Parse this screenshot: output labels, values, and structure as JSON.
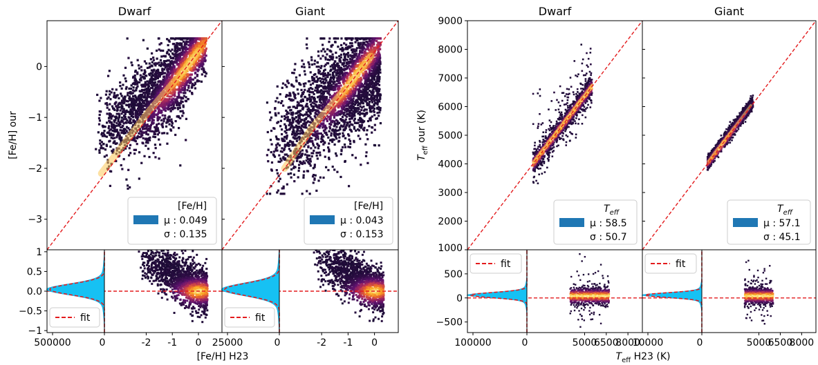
{
  "chart_data": [
    {
      "type": "scatter",
      "panel": "left",
      "titles": [
        "Dwarf",
        "Giant"
      ],
      "ylabel": "[Fe/H] our",
      "xlabel": "[Fe/H] H23",
      "xlim": [
        -3.6,
        0.9
      ],
      "ylim": [
        -3.6,
        0.9
      ],
      "yticks": [
        0,
        -1,
        -2,
        -3
      ],
      "ytick_labels": [
        "0",
        "−1",
        "−2",
        "−3"
      ],
      "xticks": [
        -2,
        -1,
        0
      ],
      "xtick_labels": [
        "-2",
        "-1",
        "0"
      ],
      "resid_ylim": [
        -1.05,
        1.05
      ],
      "resid_yticks": [
        1,
        0.5,
        0.0,
        -0.5,
        -1
      ],
      "resid_ytick_labels": [
        "1",
        "0.5",
        "0.0",
        "−0.5",
        "−1"
      ],
      "hist_tick_labels": [
        [
          "500000",
          "0"
        ],
        [
          "25000",
          "0"
        ]
      ],
      "legend_title": "[Fe/H]",
      "fit_label": "fit",
      "stats": [
        {
          "mu": "μ : 0.049",
          "sigma": "σ : 0.135"
        },
        {
          "mu": "μ : 0.043",
          "sigma": "σ : 0.153"
        }
      ],
      "one_to_one_line": [
        [
          -3.6,
          -3.6
        ],
        [
          0.9,
          0.9
        ]
      ],
      "dwarf_density_ridge": [
        [
          -2.2,
          -2.1
        ],
        [
          -1.5,
          -1.4
        ],
        [
          -1.0,
          -0.9
        ],
        [
          -0.5,
          -0.45
        ],
        [
          0.0,
          0.0
        ],
        [
          0.3,
          0.3
        ]
      ],
      "giant_density_ridge": [
        [
          -2.0,
          -2.0
        ],
        [
          -1.3,
          -1.2
        ],
        [
          -0.8,
          -0.75
        ],
        [
          -0.3,
          -0.3
        ],
        [
          0.2,
          0.2
        ]
      ]
    },
    {
      "type": "scatter",
      "panel": "right",
      "titles": [
        "Dwarf",
        "Giant"
      ],
      "ylabel": "T_eff our (K)",
      "xlabel": "T_eff H23 (K)",
      "xlim": [
        1000,
        9000
      ],
      "ylim": [
        1000,
        9000
      ],
      "yticks": [
        9000,
        8000,
        7000,
        6000,
        5000,
        4000,
        3000,
        2000,
        1000
      ],
      "ytick_labels": [
        "9000",
        "8000",
        "7000",
        "6000",
        "5000",
        "4000",
        "3000",
        "2000",
        "1000"
      ],
      "xticks": [
        5000,
        6500,
        8000
      ],
      "xtick_labels": [
        "5000",
        "6500",
        "8000"
      ],
      "resid_ylim": [
        -720,
        1000
      ],
      "resid_yticks": [
        500,
        0,
        -500
      ],
      "resid_ytick_labels": [
        "500",
        "0",
        "−500"
      ],
      "hist_tick_labels": [
        [
          "100000",
          "0"
        ],
        [
          "10000",
          "0"
        ]
      ],
      "legend_title": "T_eff",
      "fit_label": "fit",
      "stats": [
        {
          "mu": "μ : 58.5",
          "sigma": "σ : 50.7"
        },
        {
          "mu": "μ : 57.1",
          "sigma": "σ : 45.1"
        }
      ],
      "one_to_one_line": [
        [
          1000,
          1000
        ],
        [
          9000,
          9000
        ]
      ],
      "dwarf_density_ridge": [
        [
          4000,
          4050
        ],
        [
          4500,
          4550
        ],
        [
          5000,
          5050
        ],
        [
          5500,
          5560
        ],
        [
          6000,
          6060
        ],
        [
          6700,
          6750
        ]
      ],
      "giant_density_ridge": [
        [
          4050,
          4100
        ],
        [
          4500,
          4550
        ],
        [
          5000,
          5040
        ],
        [
          5500,
          5530
        ],
        [
          6000,
          6040
        ]
      ]
    }
  ]
}
